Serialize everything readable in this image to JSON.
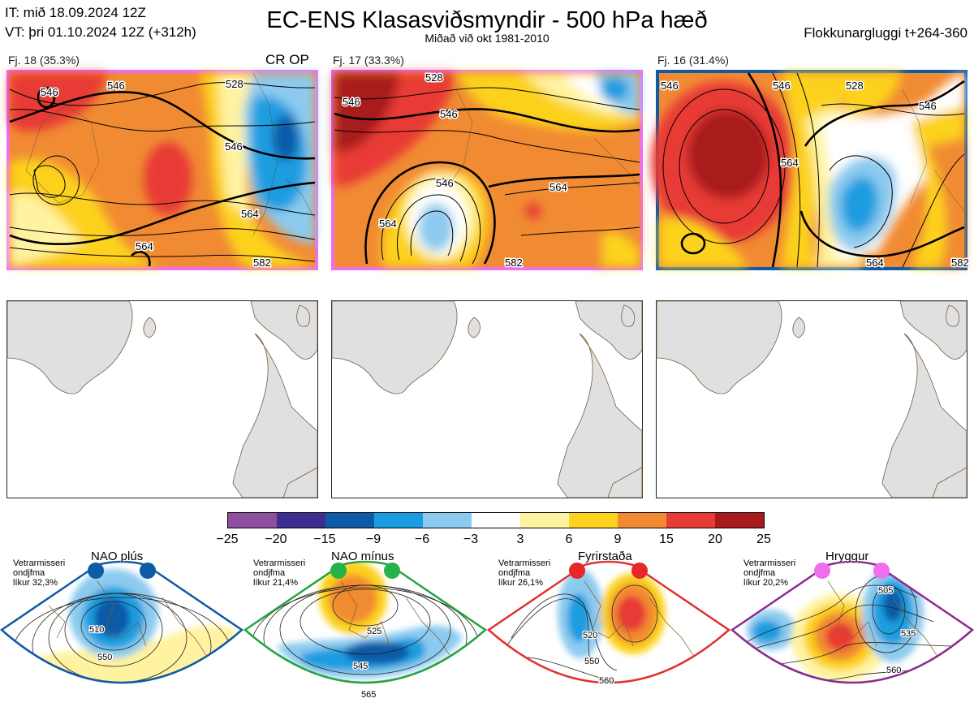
{
  "header": {
    "it_line": "IT: mið 18.09.2024 12Z",
    "vt_line": "VT: þri 01.10.2024 12Z  (+312h)",
    "title": "EC-ENS Klasasviðsmyndir - 500 hPa hæð",
    "subtitle": "Miðað við okt 1981-2010",
    "window": "Flokkunargluggi t+264-360"
  },
  "clusters": [
    {
      "label": "Fj. 18 (35.3%)",
      "tag": "CR OP",
      "border_color": "#ee6eee",
      "contour_labels": [
        "546",
        "546",
        "546",
        "564",
        "564",
        "528",
        "582"
      ]
    },
    {
      "label": "Fj. 17 (33.3%)",
      "tag": "",
      "border_color": "#ee6eee",
      "contour_labels": [
        "546",
        "546",
        "546",
        "564",
        "564",
        "582",
        "528"
      ]
    },
    {
      "label": "Fj. 16 (31.4%)",
      "tag": "",
      "border_color": "#0d5aa7",
      "contour_labels": [
        "546",
        "546",
        "546",
        "564",
        "564",
        "582",
        "528"
      ]
    }
  ],
  "colorbar": {
    "ticks": [
      "−25",
      "−20",
      "−15",
      "−9",
      "−6",
      "−3",
      "3",
      "6",
      "9",
      "15",
      "20",
      "25"
    ],
    "colors": [
      "#8e4f9e",
      "#3c2d91",
      "#0d5aa7",
      "#1a9de0",
      "#8ccbef",
      "#ffffff",
      "#fff3a1",
      "#fcd21d",
      "#f18b33",
      "#e83b36",
      "#a81a1c"
    ]
  },
  "regimes": [
    {
      "name": "NAO plús",
      "meta": [
        "Vetrarmisseri",
        "ondjfma",
        "líkur 32,3%"
      ],
      "dot_color": "#0d5aa7",
      "border_color": "#1059a6",
      "contour_labels": [
        "510",
        "550"
      ]
    },
    {
      "name": "NAO mínus",
      "meta": [
        "Vetrarmisseri",
        "ondjfma",
        "líkur 21,4%"
      ],
      "dot_color": "#26b24b",
      "border_color": "#26a43f",
      "contour_labels": [
        "525",
        "545",
        "565"
      ]
    },
    {
      "name": "Fyrirstaða",
      "meta": [
        "Vetrarmisseri",
        "ondjfma",
        "líkur 26,1%"
      ],
      "dot_color": "#e72828",
      "border_color": "#e23030",
      "contour_labels": [
        "520",
        "550",
        "560"
      ]
    },
    {
      "name": "Hryggur",
      "meta": [
        "Vetrarmisseri",
        "ondjfma",
        "líkur 20,2%"
      ],
      "dot_color": "#ee6eee",
      "border_color": "#8b2c8f",
      "contour_labels": [
        "505",
        "535",
        "560"
      ]
    }
  ]
}
